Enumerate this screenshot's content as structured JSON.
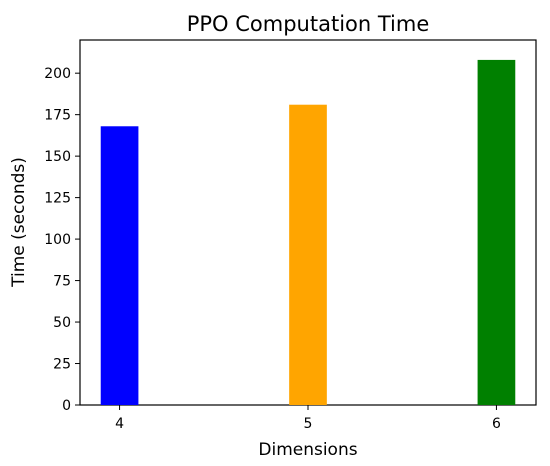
{
  "chart_data": {
    "type": "bar",
    "title": "PPO Computation Time",
    "xlabel": "Dimensions",
    "ylabel": "Time (seconds)",
    "categories": [
      "4",
      "5",
      "6"
    ],
    "values": [
      168,
      181,
      208
    ],
    "colors": [
      "#0000ff",
      "#ffa500",
      "#008000"
    ],
    "ylim": [
      0,
      220
    ],
    "yticks": [
      0,
      25,
      50,
      75,
      100,
      125,
      150,
      175,
      200
    ],
    "grid": false
  }
}
